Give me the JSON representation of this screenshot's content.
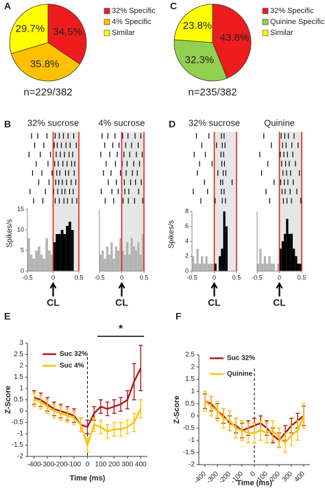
{
  "chart_data": [
    {
      "type": "pie",
      "panel": "A",
      "note": "n=229/382",
      "labels": [
        "32% Specific",
        "4% Specific",
        "Similar"
      ],
      "values": [
        34.5,
        35.8,
        29.7
      ],
      "value_labels": [
        "34.5%",
        "35.8%",
        "29.7%"
      ],
      "colors": [
        "#ee1c1c",
        "#ffc000",
        "#ffff00"
      ]
    },
    {
      "type": "pie",
      "panel": "C",
      "note": "n=235/382",
      "labels": [
        "32% Specific",
        "Quinine Specific",
        "Similar"
      ],
      "values": [
        43.8,
        32.3,
        23.8
      ],
      "value_labels": [
        "43.8%",
        "32.3%",
        "23.8%"
      ],
      "colors": [
        "#ee1c1c",
        "#92d050",
        "#ffff00"
      ]
    },
    {
      "type": "histogram",
      "panel": "B",
      "title": "32% sucrose",
      "ylabel": "Spikes/s",
      "event_label": "CL",
      "bins": [
        -0.5,
        -0.45,
        -0.4,
        -0.35,
        -0.3,
        -0.25,
        -0.2,
        -0.15,
        -0.1,
        -0.05,
        0,
        0.05,
        0.1,
        0.15,
        0.2,
        0.25,
        0.3,
        0.35,
        0.4,
        0.45,
        0.5
      ],
      "counts": [
        8,
        4,
        3,
        5,
        6,
        4,
        3,
        8,
        5,
        4,
        7,
        9,
        9,
        10,
        9,
        11,
        12,
        10,
        0,
        0
      ],
      "color": "#b4b4b4",
      "response_color": "#000000",
      "marker_color": "#e0201b",
      "response_window": [
        0,
        0.5
      ],
      "xlim": [
        -0.5,
        0.5
      ],
      "xticks": [
        -0.5,
        0,
        0.5
      ],
      "ylim": [
        0,
        15
      ],
      "yticks": [
        0,
        5,
        10,
        15
      ],
      "raster": [
        [
          -0.42,
          -0.3,
          -0.12,
          0.04,
          0.12,
          0.2,
          0.29,
          0.4
        ],
        [
          -0.36,
          -0.18,
          0.02,
          0.08,
          0.16,
          0.25,
          0.33,
          0.45
        ],
        [
          -0.47,
          -0.25,
          -0.05,
          0.06,
          0.14,
          0.22,
          0.31,
          0.38
        ],
        [
          -0.33,
          -0.1,
          0.03,
          0.1,
          0.19,
          0.27,
          0.36,
          0.42
        ],
        [
          -0.4,
          -0.22,
          -0.02,
          0.07,
          0.13,
          0.24,
          0.3,
          0.41
        ],
        [
          -0.28,
          -0.08,
          0.05,
          0.11,
          0.18,
          0.26,
          0.35,
          0.44
        ],
        [
          -0.45,
          -0.15,
          0.01,
          0.09,
          0.17,
          0.23,
          0.32,
          0.39
        ],
        [
          -0.38,
          -0.2,
          0.04,
          0.12,
          0.21,
          0.28,
          0.37,
          0.46
        ]
      ]
    },
    {
      "type": "histogram",
      "title": "4% sucrose",
      "event_label": "CL",
      "bins": [
        -0.5,
        -0.45,
        -0.4,
        -0.35,
        -0.3,
        -0.25,
        -0.2,
        -0.15,
        -0.1,
        -0.05,
        0,
        0.05,
        0.1,
        0.15,
        0.2,
        0.25,
        0.3,
        0.35,
        0.4,
        0.45,
        0.5
      ],
      "counts": [
        4,
        5,
        3,
        6,
        4,
        7,
        3,
        6,
        5,
        8,
        5,
        4,
        7,
        4,
        8,
        6,
        5,
        7,
        4,
        9
      ],
      "color": "#b4b4b4",
      "response_color": "#b4b4b4",
      "marker_color": "#e0201b",
      "response_window": [
        0,
        0.5
      ],
      "xlim": [
        -0.5,
        0.5
      ],
      "xticks": [
        -0.5,
        0,
        0.5
      ],
      "ylim": [
        0,
        15
      ],
      "raster": [
        [
          -0.44,
          -0.31,
          -0.15,
          0.02,
          0.14,
          0.3,
          0.43
        ],
        [
          -0.38,
          -0.2,
          -0.06,
          0.09,
          0.22,
          0.37
        ],
        [
          -0.47,
          -0.27,
          -0.1,
          0.05,
          0.18,
          0.33,
          0.46
        ],
        [
          -0.35,
          -0.14,
          0.01,
          0.12,
          0.27,
          0.4
        ],
        [
          -0.41,
          -0.24,
          -0.03,
          0.1,
          0.24,
          0.35
        ],
        [
          -0.3,
          -0.12,
          0.06,
          0.2,
          0.31,
          0.44
        ],
        [
          -0.46,
          -0.22,
          -0.08,
          0.07,
          0.16,
          0.38
        ],
        [
          -0.37,
          -0.18,
          0.03,
          0.15,
          0.29,
          0.47
        ]
      ]
    },
    {
      "type": "histogram",
      "panel": "D",
      "title": "32% sucrose",
      "ylabel": "Spikes/s",
      "event_label": "CL",
      "bins": [
        -0.5,
        -0.45,
        -0.4,
        -0.35,
        -0.3,
        -0.25,
        -0.2,
        -0.15,
        -0.1,
        -0.05,
        0,
        0.05,
        0.1,
        0.15,
        0.2,
        0.25,
        0.3,
        0.35,
        0.4,
        0.45,
        0.5
      ],
      "counts": [
        2,
        1,
        3,
        1,
        2,
        1,
        2,
        1,
        1,
        1,
        1,
        0,
        2,
        3,
        8,
        6,
        0,
        0,
        0,
        0
      ],
      "color": "#b4b4b4",
      "response_color": "#000000",
      "marker_color": "#e0201b",
      "response_window": [
        0,
        0.5
      ],
      "xlim": [
        -0.5,
        0.5
      ],
      "xticks": [
        -0.5,
        0,
        0.5
      ],
      "ylim": [
        0,
        8
      ],
      "yticks": [
        0,
        2,
        4,
        6,
        8
      ],
      "raster": [
        [
          -0.4,
          -0.12,
          0.16,
          0.22
        ],
        [
          -0.28,
          0.05,
          0.18,
          0.24
        ],
        [
          -0.45,
          -0.2,
          0.15,
          0.21
        ],
        [
          -0.33,
          -0.05,
          0.17,
          0.23
        ],
        [
          -0.38,
          0.08,
          0.2,
          0.26
        ],
        [
          -0.22,
          0.14,
          0.19,
          0.4
        ],
        [
          -0.47,
          -0.15,
          0.16,
          0.22
        ],
        [
          -0.3,
          0.02,
          0.18,
          0.25
        ]
      ]
    },
    {
      "type": "histogram",
      "title": "Quinine",
      "event_label": "CL",
      "bins": [
        -0.5,
        -0.45,
        -0.4,
        -0.35,
        -0.3,
        -0.25,
        -0.2,
        -0.15,
        -0.1,
        -0.05,
        0,
        0.05,
        0.1,
        0.15,
        0.2,
        0.25,
        0.3,
        0.35,
        0.4,
        0.45,
        0.5
      ],
      "counts": [
        1,
        3,
        1,
        2,
        1,
        2,
        1,
        1,
        0,
        1,
        3,
        4,
        5,
        7,
        5,
        5,
        3,
        2,
        1,
        1
      ],
      "color": "#b4b4b4",
      "response_color": "#000000",
      "marker_color": "#e0201b",
      "response_window": [
        0,
        0.5
      ],
      "xlim": [
        -0.5,
        0.5
      ],
      "xticks": [
        -0.5,
        0,
        0.5
      ],
      "ylim": [
        0,
        8
      ],
      "raster": [
        [
          -0.35,
          0.04,
          0.12,
          0.2,
          0.33
        ],
        [
          -0.18,
          0.07,
          0.15,
          0.28,
          0.42
        ],
        [
          -0.44,
          0.02,
          0.1,
          0.18,
          0.3
        ],
        [
          -0.26,
          0.05,
          0.14,
          0.22,
          0.36
        ],
        [
          -0.4,
          0.08,
          0.16,
          0.25,
          0.45
        ],
        [
          -0.12,
          0.03,
          0.11,
          0.19,
          0.31
        ],
        [
          -0.3,
          0.06,
          0.13,
          0.24,
          0.39
        ],
        [
          -0.22,
          0.09,
          0.17,
          0.27,
          0.48
        ]
      ]
    },
    {
      "type": "line",
      "panel": "E",
      "xlabel": "Time (ms)",
      "ylabel": "Z-Score",
      "vline": 0,
      "annotation": {
        "text": "*",
        "x": [
          75,
          425
        ]
      },
      "x": [
        -400,
        -350,
        -300,
        -250,
        -200,
        -150,
        -100,
        -50,
        0,
        50,
        100,
        150,
        200,
        250,
        300,
        350,
        400
      ],
      "series": [
        {
          "name": "Suc 32%",
          "color": "#b01818",
          "values": [
            0.6,
            0.5,
            0.3,
            0.1,
            0,
            -0.1,
            -0.2,
            -0.6,
            -0.7,
            -0.1,
            0.2,
            0.1,
            0.2,
            0.3,
            0.5,
            1.3,
            1.9
          ],
          "errors": [
            0.3,
            0.3,
            0.3,
            0.3,
            0.3,
            0.3,
            0.3,
            0.3,
            0.3,
            0.3,
            0.3,
            0.3,
            0.3,
            0.3,
            0.4,
            0.8,
            1.0
          ]
        },
        {
          "name": "Suc 4%",
          "color": "#ffc000",
          "values": [
            0.5,
            0.4,
            0.2,
            0,
            -0.1,
            -0.2,
            -0.3,
            -0.6,
            -1.5,
            -0.6,
            -0.7,
            -0.9,
            -0.8,
            -0.8,
            -0.7,
            -0.5,
            0.1
          ],
          "errors": [
            0.3,
            0.3,
            0.3,
            0.3,
            0.3,
            0.3,
            0.3,
            0.3,
            0.3,
            0.3,
            0.3,
            0.3,
            0.3,
            0.3,
            0.3,
            0.4,
            0.4
          ]
        }
      ],
      "xlim": [
        -450,
        450
      ],
      "xticks": [
        -400,
        -300,
        -200,
        -100,
        0,
        100,
        200,
        300,
        400
      ],
      "ylim": [
        -2,
        3
      ],
      "yticks": [
        -2,
        -1.5,
        -1,
        -0.5,
        0,
        0.5,
        1,
        1.5,
        2,
        2.5,
        3
      ]
    },
    {
      "type": "line",
      "panel": "F",
      "xlabel": "Time (ms)",
      "ylabel": "Z-Score",
      "vline": 0,
      "x": [
        -400,
        -350,
        -300,
        -250,
        -200,
        -150,
        -100,
        -50,
        0,
        50,
        100,
        150,
        200,
        250,
        300,
        350,
        400
      ],
      "series": [
        {
          "name": "Suc 32%",
          "color": "#b01818",
          "values": [
            0.6,
            0.5,
            0.2,
            0,
            -0.3,
            -0.4,
            -0.6,
            -0.5,
            -0.4,
            -0.3,
            -0.5,
            -0.8,
            -1.0,
            -0.7,
            -0.4,
            -0.2,
            0
          ],
          "errors": [
            0.3,
            0.3,
            0.3,
            0.3,
            0.3,
            0.3,
            0.3,
            0.3,
            0.3,
            0.3,
            0.3,
            0.3,
            0.3,
            0.3,
            0.3,
            0.3,
            0.4
          ]
        },
        {
          "name": "Quinine",
          "color": "#ffc000",
          "values": [
            0.6,
            0.4,
            0.2,
            -0.1,
            -0.2,
            -0.5,
            -0.6,
            -0.7,
            -0.7,
            -0.6,
            -0.7,
            -0.6,
            -0.9,
            -1.1,
            -0.8,
            -0.6,
            0
          ],
          "errors": [
            0.4,
            0.4,
            0.4,
            0.4,
            0.4,
            0.4,
            0.4,
            0.4,
            0.4,
            0.4,
            0.4,
            0.4,
            0.4,
            0.4,
            0.4,
            0.4,
            0.5
          ]
        }
      ],
      "xlim": [
        -450,
        450
      ],
      "xticks": [
        -400,
        -300,
        -200,
        -100,
        0,
        100,
        200,
        300,
        400
      ],
      "ylim": [
        -2,
        2.5
      ],
      "yticks": [
        -2,
        -1.5,
        -1,
        -0.5,
        0,
        0.5,
        1,
        1.5,
        2,
        2.5
      ]
    }
  ]
}
